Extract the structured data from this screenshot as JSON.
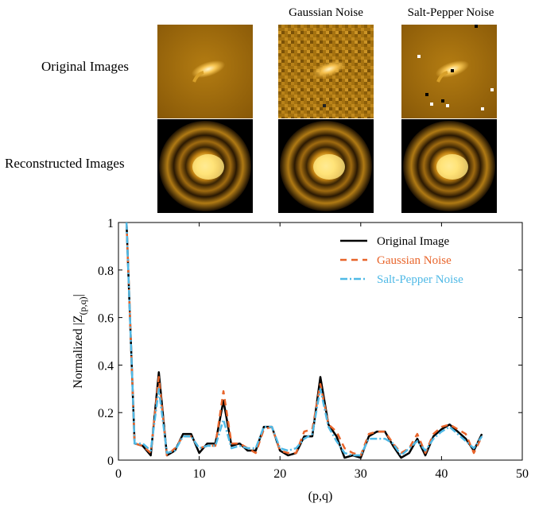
{
  "column_titles": [
    "Gaussian Noise",
    "Salt-Pepper Noise"
  ],
  "row_labels": [
    "Original Images",
    "Reconstructed Images"
  ],
  "chart_data": {
    "type": "line",
    "xlabel": "(p,q)",
    "ylabel": "Normalized |Z",
    "ylabel_sub": "(p,q)",
    "ylabel_suffix": "|",
    "xlim": [
      0,
      50
    ],
    "ylim": [
      0,
      1
    ],
    "xticks": [
      "0",
      "10",
      "20",
      "30",
      "40",
      "50"
    ],
    "yticks": [
      "0",
      "0.2",
      "0.4",
      "0.6",
      "0.8",
      "1"
    ],
    "grid": false,
    "legend_position": "top-right",
    "x": [
      1,
      2,
      3,
      4,
      5,
      6,
      7,
      8,
      9,
      10,
      11,
      12,
      13,
      14,
      15,
      16,
      17,
      18,
      19,
      20,
      21,
      22,
      23,
      24,
      25,
      26,
      27,
      28,
      29,
      30,
      31,
      32,
      33,
      34,
      35,
      36,
      37,
      38,
      39,
      40,
      41,
      42,
      43,
      44,
      45
    ],
    "series": [
      {
        "name": "Original Image",
        "color": "#000000",
        "dash": "solid",
        "values": [
          1.0,
          0.07,
          0.06,
          0.02,
          0.37,
          0.02,
          0.04,
          0.11,
          0.11,
          0.03,
          0.07,
          0.07,
          0.25,
          0.06,
          0.07,
          0.04,
          0.04,
          0.14,
          0.14,
          0.04,
          0.02,
          0.03,
          0.1,
          0.1,
          0.35,
          0.15,
          0.1,
          0.01,
          0.02,
          0.01,
          0.1,
          0.12,
          0.12,
          0.06,
          0.01,
          0.03,
          0.09,
          0.02,
          0.1,
          0.13,
          0.15,
          0.12,
          0.09,
          0.04,
          0.11
        ]
      },
      {
        "name": "Gaussian Noise",
        "color": "#e8642a",
        "dash": "8,6",
        "values": [
          1.0,
          0.07,
          0.06,
          0.03,
          0.35,
          0.02,
          0.05,
          0.1,
          0.1,
          0.05,
          0.06,
          0.06,
          0.29,
          0.07,
          0.07,
          0.05,
          0.03,
          0.13,
          0.14,
          0.04,
          0.03,
          0.03,
          0.12,
          0.13,
          0.32,
          0.15,
          0.12,
          0.05,
          0.03,
          0.02,
          0.11,
          0.12,
          0.12,
          0.07,
          0.03,
          0.05,
          0.11,
          0.03,
          0.11,
          0.14,
          0.15,
          0.13,
          0.11,
          0.03,
          0.1
        ]
      },
      {
        "name": "Salt-Pepper Noise",
        "color": "#4fb9e6",
        "dash": "9,3,2,3",
        "values": [
          1.0,
          0.07,
          0.07,
          0.04,
          0.3,
          0.03,
          0.04,
          0.1,
          0.1,
          0.05,
          0.06,
          0.06,
          0.17,
          0.05,
          0.06,
          0.05,
          0.05,
          0.14,
          0.14,
          0.05,
          0.04,
          0.05,
          0.09,
          0.11,
          0.3,
          0.14,
          0.08,
          0.03,
          0.02,
          0.02,
          0.09,
          0.09,
          0.09,
          0.07,
          0.02,
          0.05,
          0.08,
          0.04,
          0.09,
          0.12,
          0.14,
          0.11,
          0.08,
          0.05,
          0.1
        ]
      }
    ]
  }
}
